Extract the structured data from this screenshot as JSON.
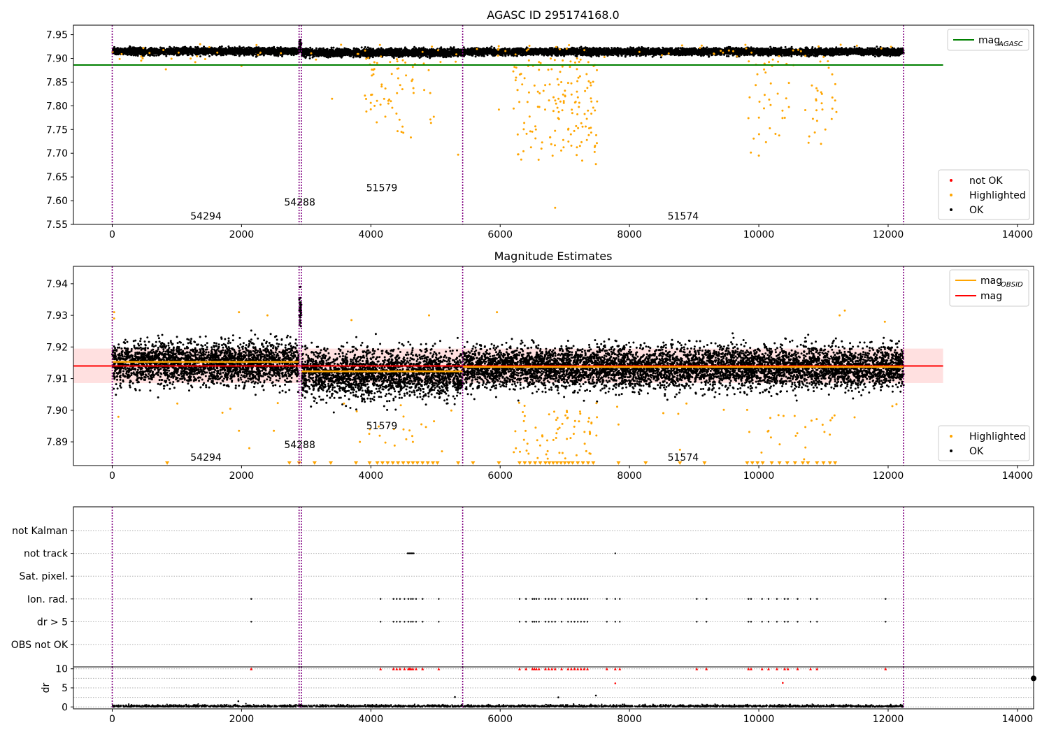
{
  "figure": {
    "background": "#ffffff"
  },
  "chart_data": [
    {
      "id": "top",
      "type": "scatter",
      "title": "AGASC ID 295174168.0",
      "xlim": [
        -600,
        14250
      ],
      "ylim": [
        7.55,
        7.97
      ],
      "xticks": [
        0,
        2000,
        4000,
        6000,
        8000,
        10000,
        12000,
        14000
      ],
      "xtick_labels": [
        "0",
        "2000",
        "4000",
        "6000",
        "8000",
        "10000",
        "12000",
        "14000"
      ],
      "yticks": [
        7.55,
        7.6,
        7.65,
        7.7,
        7.75,
        7.8,
        7.85,
        7.9,
        7.95
      ],
      "ytick_labels": [
        "7.55",
        "7.60",
        "7.65",
        "7.70",
        "7.75",
        "7.80",
        "7.85",
        "7.90",
        "7.95"
      ],
      "obs_boundaries": [
        0,
        2890,
        2925,
        5420,
        12240
      ],
      "obs_labels": [
        {
          "text": "54294",
          "x": 1450,
          "y": 7.56
        },
        {
          "text": "54288",
          "x": 2900,
          "y": 7.59
        },
        {
          "text": "51579",
          "x": 4170,
          "y": 7.62
        },
        {
          "text": "51574",
          "x": 8830,
          "y": 7.56
        }
      ],
      "reference_lines": [
        {
          "name": "mag_AGASC",
          "y": 7.886,
          "x0": -600,
          "x1": 12850,
          "color": "#008000"
        }
      ],
      "ok_band": {
        "segments": [
          {
            "x0": 0,
            "x1": 2890,
            "center": 7.915,
            "spread": 0.007
          },
          {
            "x0": 2890,
            "x1": 2925,
            "center": 7.925,
            "spread": 0.012
          },
          {
            "x0": 2925,
            "x1": 5420,
            "center": 7.912,
            "spread": 0.008
          },
          {
            "x0": 5420,
            "x1": 12240,
            "center": 7.914,
            "spread": 0.007
          }
        ]
      },
      "highlighted_clusters": [
        {
          "x0": 3900,
          "x1": 5000,
          "y0": 7.73,
          "y1": 7.9,
          "n": 60
        },
        {
          "x0": 6200,
          "x1": 7500,
          "y0": 7.68,
          "y1": 7.9,
          "n": 150
        },
        {
          "x0": 9800,
          "x1": 11200,
          "y0": 7.7,
          "y1": 7.9,
          "n": 60
        },
        {
          "x0": 0,
          "x1": 12200,
          "y0": 7.88,
          "y1": 7.93,
          "n": 90
        }
      ],
      "highlighted_points": [
        [
          6850,
          7.585
        ],
        [
          5350,
          7.697
        ],
        [
          7480,
          7.677
        ],
        [
          10000,
          7.695
        ],
        [
          10770,
          7.722
        ],
        [
          3400,
          7.815
        ],
        [
          5980,
          7.792
        ],
        [
          11200,
          7.787
        ],
        [
          830,
          7.877
        ]
      ],
      "legend_upper": [
        {
          "label": "mag",
          "sub": "AGASC",
          "kind": "line",
          "color": "#008000"
        }
      ],
      "legend_lower": [
        {
          "label": "not OK",
          "kind": "dot",
          "color": "#ff0000"
        },
        {
          "label": "Highlighted",
          "kind": "dot",
          "color": "#ffa500"
        },
        {
          "label": "OK",
          "kind": "dot",
          "color": "#000000"
        }
      ]
    },
    {
      "id": "mid",
      "type": "scatter",
      "title": "Magnitude Estimates",
      "xlim": [
        -600,
        14250
      ],
      "ylim": [
        7.8825,
        7.9455
      ],
      "xticks": [
        0,
        2000,
        4000,
        6000,
        8000,
        10000,
        12000,
        14000
      ],
      "xtick_labels": [
        "0",
        "2000",
        "4000",
        "6000",
        "8000",
        "10000",
        "12000",
        "14000"
      ],
      "yticks": [
        7.89,
        7.9,
        7.91,
        7.92,
        7.93,
        7.94
      ],
      "ytick_labels": [
        "7.89",
        "7.90",
        "7.91",
        "7.92",
        "7.93",
        "7.94"
      ],
      "obs_boundaries": [
        0,
        2890,
        2925,
        5420,
        12240
      ],
      "obs_labels": [
        {
          "text": "54294",
          "x": 1450,
          "y": 7.884
        },
        {
          "text": "54288",
          "x": 2900,
          "y": 7.888
        },
        {
          "text": "51579",
          "x": 4170,
          "y": 7.894
        },
        {
          "text": "51574",
          "x": 8830,
          "y": 7.884
        }
      ],
      "mag": {
        "y": 7.914,
        "band": [
          7.9086,
          7.9195
        ],
        "x0": -600,
        "x1": 12850,
        "color": "#ff0000"
      },
      "mag_obsid": [
        {
          "x0": 0,
          "x1": 2900,
          "y": 7.9153
        },
        {
          "x0": 2925,
          "x1": 5420,
          "y": 7.9123
        },
        {
          "x0": 5420,
          "x1": 12240,
          "y": 7.9137
        }
      ],
      "ok_band": {
        "segments": [
          {
            "x0": 0,
            "x1": 2890,
            "center": 7.9148,
            "spread": 0.0065
          },
          {
            "x0": 2890,
            "x1": 2925,
            "center": 7.932,
            "spread": 0.005
          },
          {
            "x0": 2925,
            "x1": 5420,
            "center": 7.9115,
            "spread": 0.0075
          },
          {
            "x0": 5420,
            "x1": 12240,
            "center": 7.9135,
            "spread": 0.0065
          }
        ]
      },
      "highlighted_points": [
        [
          30,
          7.931
        ],
        [
          30,
          7.929
        ],
        [
          1960,
          7.931
        ],
        [
          2400,
          7.93
        ],
        [
          3700,
          7.9285
        ],
        [
          4900,
          7.93
        ],
        [
          5950,
          7.931
        ],
        [
          11330,
          7.9315
        ],
        [
          11250,
          7.93
        ],
        [
          11950,
          7.928
        ],
        [
          1960,
          7.8935
        ],
        [
          2120,
          7.888
        ],
        [
          2500,
          7.8935
        ],
        [
          3830,
          7.89
        ],
        [
          4650,
          7.89
        ],
        [
          5100,
          7.887
        ],
        [
          7830,
          7.8955
        ],
        [
          8780,
          7.8875
        ],
        [
          10150,
          7.8935
        ],
        [
          10700,
          7.8845
        ]
      ],
      "highlighted_clusters": [
        {
          "x0": 6200,
          "x1": 7500,
          "y0": 7.8835,
          "y1": 7.9,
          "n": 60
        },
        {
          "x0": 3900,
          "x1": 5000,
          "y0": 7.886,
          "y1": 7.898,
          "n": 15
        },
        {
          "x0": 9800,
          "x1": 11200,
          "y0": 7.886,
          "y1": 7.899,
          "n": 20
        },
        {
          "x0": 0,
          "x1": 12200,
          "y0": 7.897,
          "y1": 7.903,
          "n": 25
        }
      ],
      "clipped_markers_x": [
        850,
        2740,
        2890,
        3130,
        3380,
        3770,
        3980,
        4100,
        4180,
        4260,
        4340,
        4420,
        4500,
        4580,
        4650,
        4720,
        4800,
        4880,
        4960,
        5030,
        5350,
        5580,
        5980,
        6300,
        6380,
        6460,
        6540,
        6620,
        6700,
        6760,
        6820,
        6880,
        6940,
        7000,
        7060,
        7120,
        7200,
        7280,
        7360,
        7440,
        7830,
        8250,
        8780,
        9160,
        9820,
        9900,
        9980,
        10060,
        10200,
        10320,
        10440,
        10560,
        10680,
        10760,
        10900,
        11000,
        11100,
        11180
      ],
      "legend_upper": [
        {
          "label": "mag",
          "sub": "OBSID",
          "kind": "line",
          "color": "#ffa500"
        },
        {
          "label": "mag",
          "kind": "line",
          "color": "#ff0000"
        }
      ],
      "legend_lower": [
        {
          "label": "Highlighted",
          "kind": "dot",
          "color": "#ffa500"
        },
        {
          "label": "OK",
          "kind": "dot",
          "color": "#000000"
        }
      ]
    },
    {
      "id": "flags",
      "type": "scatter",
      "xlim": [
        -600,
        14250
      ],
      "obs_boundaries": [
        0,
        2890,
        2925,
        5420,
        12240
      ],
      "flag_rows": [
        "not Kalman",
        "not track",
        "Sat. pixel.",
        "Ion. rad.",
        "dr > 5",
        "OBS not OK"
      ],
      "flag_points": {
        "not track": [
          4600,
          4610,
          4620,
          4630,
          7780
        ],
        "Ion. rad.": [
          2150,
          4150,
          4350,
          4400,
          4450,
          4520,
          4580,
          4620,
          4650,
          4700,
          4800,
          5050,
          6300,
          6400,
          6500,
          6530,
          6560,
          6600,
          6700,
          6750,
          6800,
          6850,
          6950,
          7050,
          7100,
          7150,
          7200,
          7250,
          7300,
          7350,
          7650,
          7780,
          7850,
          9040,
          9190,
          9840,
          9880,
          10050,
          10150,
          10280,
          10400,
          10450,
          10600,
          10800,
          10900,
          11960
        ],
        "dr > 5": [
          2150,
          4150,
          4350,
          4400,
          4450,
          4520,
          4580,
          4620,
          4650,
          4700,
          4800,
          5050,
          6300,
          6400,
          6500,
          6530,
          6560,
          6600,
          6700,
          6750,
          6800,
          6850,
          6950,
          7050,
          7100,
          7150,
          7200,
          7250,
          7300,
          7350,
          7650,
          7780,
          7850,
          9040,
          9190,
          9840,
          9880,
          10050,
          10150,
          10280,
          10400,
          10450,
          10600,
          10800,
          10900,
          11960
        ]
      }
    },
    {
      "id": "dr",
      "type": "scatter",
      "ylabel": "dr",
      "xlim": [
        -600,
        14250
      ],
      "ylim": [
        -0.5,
        10.5
      ],
      "xticks": [
        0,
        2000,
        4000,
        6000,
        8000,
        10000,
        12000,
        14000
      ],
      "xtick_labels": [
        "0",
        "2000",
        "4000",
        "6000",
        "8000",
        "10000",
        "12000",
        "14000"
      ],
      "yticks": [
        0,
        5,
        10
      ],
      "ytick_labels": [
        "0",
        "5",
        "10"
      ],
      "obs_boundaries": [
        0,
        2890,
        2925,
        5420,
        12240
      ],
      "clipped_x": [
        2150,
        4150,
        4350,
        4400,
        4450,
        4520,
        4580,
        4600,
        4620,
        4650,
        4700,
        4800,
        5050,
        6300,
        6400,
        6500,
        6530,
        6560,
        6600,
        6700,
        6750,
        6800,
        6850,
        6950,
        7050,
        7100,
        7150,
        7200,
        7250,
        7300,
        7350,
        7650,
        7780,
        7850,
        9040,
        9190,
        9840,
        9880,
        10050,
        10150,
        10280,
        10400,
        10450,
        10600,
        10800,
        10900,
        11960
      ],
      "outliers": [
        [
          7780,
          6.2
        ],
        [
          10370,
          6.3
        ],
        [
          7480,
          3.0
        ],
        [
          5300,
          2.6
        ],
        [
          1950,
          1.5
        ],
        [
          6900,
          2.5
        ]
      ],
      "edge_marker": {
        "x": 14250,
        "y": 7.5
      }
    }
  ]
}
